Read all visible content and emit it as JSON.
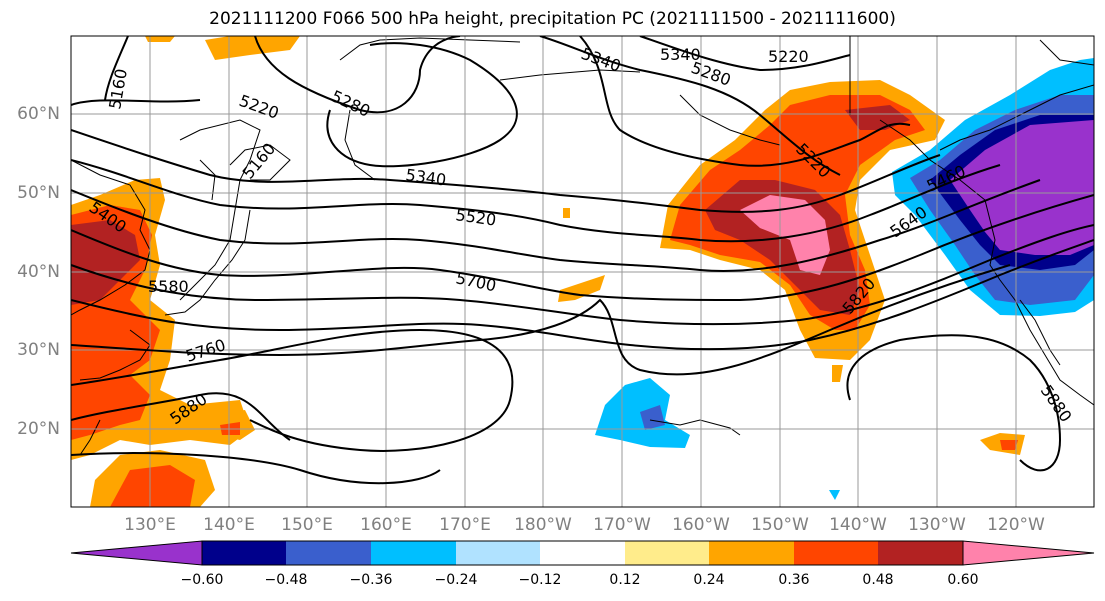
{
  "title": "2021111200 F066 500 hPa height, precipitation PC (2021111500 - 2021111600)",
  "lat_labels": [
    "60°N",
    "50°N",
    "40°N",
    "30°N",
    "20°N"
  ],
  "lon_labels": [
    "130°E",
    "140°E",
    "150°E",
    "160°E",
    "170°E",
    "180°W",
    "170°W",
    "160°W",
    "150°W",
    "140°W",
    "130°W",
    "120°W"
  ],
  "contour_labels": [
    "5160",
    "5220",
    "5280",
    "5340",
    "5220",
    "5160",
    "5340",
    "5400",
    "5520",
    "5580",
    "5700",
    "5760",
    "5880",
    "5220",
    "5460",
    "5640",
    "5820",
    "5880",
    "5340",
    "5280",
    "5220"
  ],
  "colorbar": {
    "ticks": [
      "−0.60",
      "−0.48",
      "−0.36",
      "−0.24",
      "−0.12",
      "0.12",
      "0.24",
      "0.36",
      "0.48",
      "0.60"
    ],
    "colors": [
      "#9932CC",
      "#00008B",
      "#3A5FCD",
      "#00BFFF",
      "#B0E2FF",
      "#FFFFFF",
      "#FFEC8B",
      "#FFA500",
      "#FF4500",
      "#B22222",
      "#FF82AB"
    ]
  },
  "colors": {
    "neg_strong": "#9932CC",
    "neg_dark": "#00008B",
    "neg_mid": "#3A5FCD",
    "neg_light": "#00BFFF",
    "pos_light": "#FFEC8B",
    "pos_mid": "#FFA500",
    "pos_strong": "#FF4500",
    "pos_dark": "#B22222",
    "pos_max": "#FF82AB"
  }
}
